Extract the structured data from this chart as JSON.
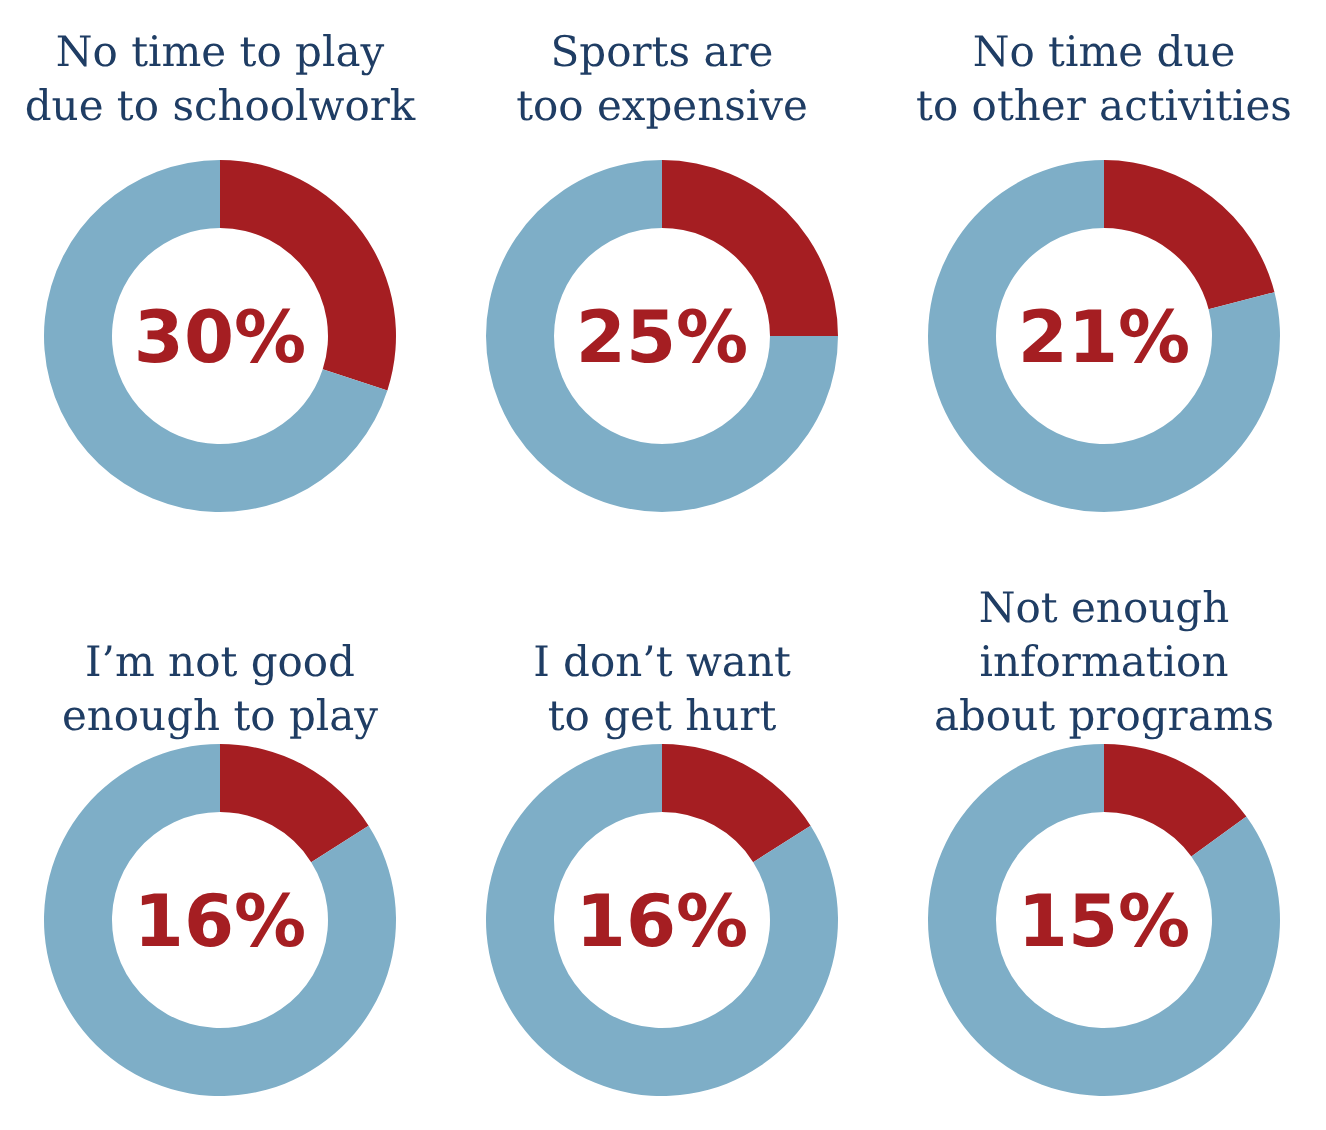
{
  "chart_data": [
    {
      "type": "donut",
      "title": "No time to play\ndue to schoolwork",
      "categories": [
        null,
        null
      ],
      "values": [
        30,
        70
      ],
      "colors": [
        "#a51e22",
        "#7eaec7"
      ],
      "annotations": [
        "30%"
      ]
    },
    {
      "type": "donut",
      "title": "Sports are\ntoo expensive",
      "categories": [
        null,
        null
      ],
      "values": [
        25,
        75
      ],
      "colors": [
        "#a51e22",
        "#7eaec7"
      ],
      "annotations": [
        "25%"
      ]
    },
    {
      "type": "donut",
      "title": "No time due\nto other activities",
      "categories": [
        null,
        null
      ],
      "values": [
        21,
        79
      ],
      "colors": [
        "#a51e22",
        "#7eaec7"
      ],
      "annotations": [
        "21%"
      ]
    },
    {
      "type": "donut",
      "title": "I’m not good\nenough to play",
      "categories": [
        null,
        null
      ],
      "values": [
        16,
        84
      ],
      "colors": [
        "#a51e22",
        "#7eaec7"
      ],
      "annotations": [
        "16%"
      ]
    },
    {
      "type": "donut",
      "title": "I don’t want\nto get hurt",
      "categories": [
        null,
        null
      ],
      "values": [
        16,
        84
      ],
      "colors": [
        "#a51e22",
        "#7eaec7"
      ],
      "annotations": [
        "16%"
      ]
    },
    {
      "type": "donut",
      "title": "Not enough\ninformation\nabout programs",
      "categories": [
        null,
        null
      ],
      "values": [
        15,
        85
      ],
      "colors": [
        "#a51e22",
        "#7eaec7"
      ],
      "annotations": [
        "15%"
      ]
    }
  ]
}
